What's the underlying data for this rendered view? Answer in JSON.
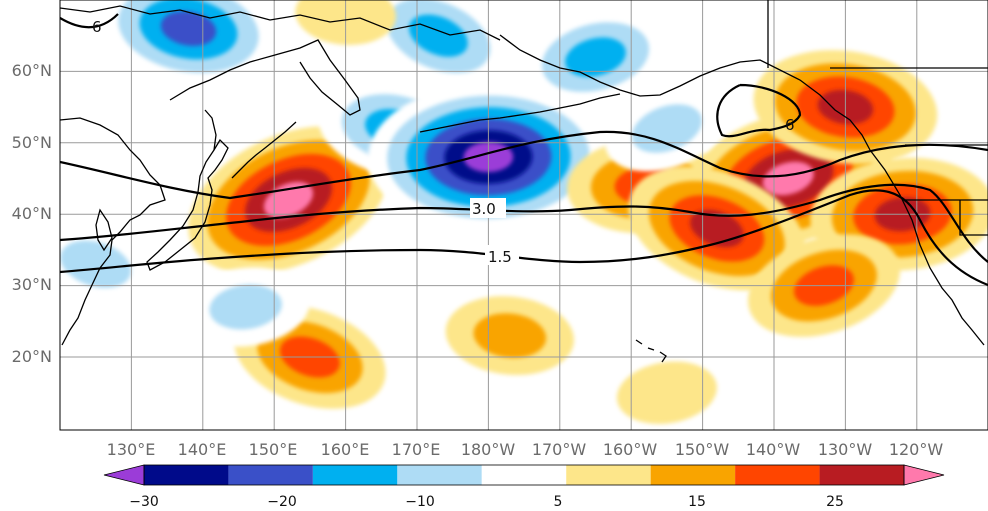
{
  "map": {
    "latitude_labels": [
      "60°N",
      "50°N",
      "40°N",
      "30°N",
      "20°N"
    ],
    "longitude_labels": [
      "130°E",
      "140°E",
      "150°E",
      "160°E",
      "170°E",
      "180°W",
      "170°W",
      "160°W",
      "150°W",
      "140°W",
      "130°W",
      "120°W"
    ],
    "contour_labels": [
      "3.0",
      "1.5",
      "6",
      "6"
    ],
    "anomaly_blobs": [
      {
        "lon": 152,
        "lat": 42,
        "value": 25
      },
      {
        "lon": 167,
        "lat": 52,
        "value": -15
      },
      {
        "lon": 180,
        "lat": 48,
        "value": -30
      },
      {
        "lon": 195,
        "lat": 62,
        "value": -15
      },
      {
        "lon": 173,
        "lat": 65,
        "value": -15
      },
      {
        "lon": 138,
        "lat": 66,
        "value": -20
      },
      {
        "lon": 202,
        "lat": 44,
        "value": 15
      },
      {
        "lon": 222,
        "lat": 45,
        "value": 25
      },
      {
        "lon": 212,
        "lat": 38,
        "value": 20
      },
      {
        "lon": 230,
        "lat": 55,
        "value": 20
      },
      {
        "lon": 238,
        "lat": 40,
        "value": 20
      },
      {
        "lon": 227,
        "lat": 30,
        "value": 15
      },
      {
        "lon": 155,
        "lat": 20,
        "value": 15
      },
      {
        "lon": 183,
        "lat": 23,
        "value": 10
      },
      {
        "lon": 146,
        "lat": 27,
        "value": -10
      },
      {
        "lon": 205,
        "lat": 52,
        "value": -10
      },
      {
        "lon": 125,
        "lat": 33,
        "value": -10
      },
      {
        "lon": 160,
        "lat": 68,
        "value": 5
      },
      {
        "lon": 205,
        "lat": 15,
        "value": 5
      }
    ]
  },
  "colorbar": {
    "tick_labels": [
      "−30",
      "−20",
      "−10",
      "5",
      "15",
      "25"
    ],
    "colors": [
      "#9b3cd8",
      "#000a8a",
      "#3a50c8",
      "#00b0f0",
      "#aedcf5",
      "#ffffff",
      "#fde68a",
      "#f9a400",
      "#ff4500",
      "#b81c22",
      "#ff79ac"
    ],
    "extend_low_color": "#9b3cd8",
    "extend_high_color": "#ff79ac"
  }
}
